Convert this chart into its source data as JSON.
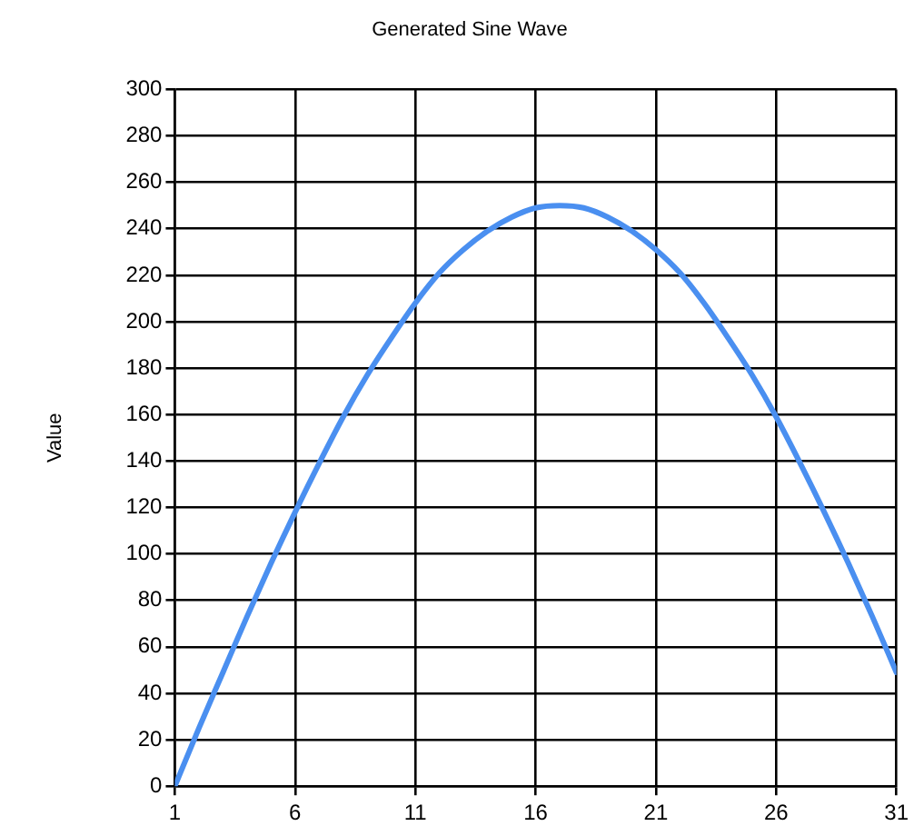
{
  "chart_data": {
    "type": "line",
    "title": "Generated Sine Wave",
    "ylabel": "Value",
    "x": [
      1,
      2,
      3,
      4,
      5,
      6,
      7,
      8,
      9,
      10,
      11,
      12,
      13,
      14,
      15,
      16,
      17,
      18,
      19,
      20,
      21,
      22,
      23,
      24,
      25,
      26,
      27,
      28,
      29,
      30,
      31
    ],
    "series": [
      {
        "color": "#4a8ff0",
        "values": [
          0,
          25,
          49,
          73,
          96,
          118,
          139,
          159,
          177,
          193,
          208,
          221,
          231,
          239,
          245,
          249,
          250,
          249,
          245,
          239,
          231,
          221,
          208,
          193,
          177,
          159,
          139,
          118,
          96,
          73,
          49
        ]
      }
    ],
    "xlim": [
      1,
      31
    ],
    "xticks": [
      1,
      6,
      11,
      16,
      21,
      26,
      31
    ],
    "ylim": [
      0,
      300
    ],
    "yticks": [
      0,
      20,
      40,
      60,
      80,
      100,
      120,
      140,
      160,
      180,
      200,
      220,
      240,
      260,
      280,
      300
    ],
    "grid": true,
    "legend": false,
    "marker": "none",
    "line_style": "solid"
  }
}
